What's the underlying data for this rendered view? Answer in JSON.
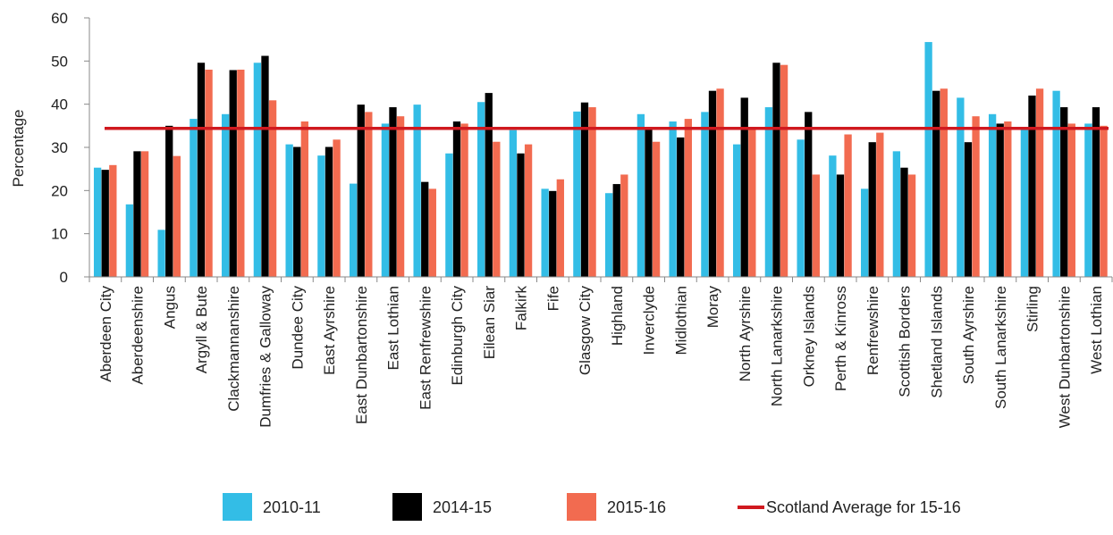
{
  "chart_data": {
    "type": "bar",
    "ylabel": "Percentage",
    "xlabel": "",
    "ylim": [
      0,
      60
    ],
    "yticks": [
      0,
      10,
      20,
      30,
      40,
      50,
      60
    ],
    "grid": false,
    "legend_position": "bottom",
    "categories": [
      "Aberdeen City",
      "Aberdeenshire",
      "Angus",
      "Argyll & Bute",
      "Clackmannanshire",
      "Dumfries & Galloway",
      "Dundee City",
      "East Ayrshire",
      "East Dunbartonshire",
      "East Lothian",
      "East Renfrewshire",
      "Edinburgh City",
      "Eilean Siar",
      "Falkirk",
      "Fife",
      "Glasgow City",
      "Highland",
      "Inverclyde",
      "Midlothian",
      "Moray",
      "North Ayrshire",
      "North Lanarkshire",
      "Orkney Islands",
      "Perth & Kinross",
      "Renfrewshire",
      "Scottish Borders",
      "Shetland Islands",
      "South Ayrshire",
      "South Lanarkshire",
      "Stirling",
      "West Dunbartonshire",
      "West Lothian"
    ],
    "series": [
      {
        "name": "2010-11",
        "color": "#33bde6",
        "values": [
          25.3,
          16.8,
          10.9,
          36.6,
          37.7,
          49.6,
          30.7,
          28.1,
          21.6,
          35.5,
          39.9,
          28.6,
          40.5,
          34.0,
          20.4,
          38.3,
          19.4,
          37.7,
          36.0,
          38.2,
          30.7,
          39.3,
          31.8,
          28.1,
          20.4,
          29.1,
          54.4,
          41.5,
          37.7,
          34.4,
          43.1,
          35.5
        ]
      },
      {
        "name": "2014-15",
        "color": "#000000",
        "values": [
          24.8,
          29.1,
          35.0,
          49.6,
          47.9,
          51.2,
          30.1,
          30.1,
          39.9,
          39.3,
          22.0,
          36.0,
          42.6,
          28.6,
          19.9,
          40.4,
          21.5,
          34.4,
          32.3,
          43.1,
          41.5,
          49.6,
          38.2,
          23.7,
          31.2,
          25.3,
          43.1,
          31.2,
          35.5,
          42.0,
          39.3,
          39.3
        ]
      },
      {
        "name": "2015-16",
        "color": "#f26b50",
        "values": [
          25.9,
          29.1,
          28.0,
          48.0,
          48.0,
          40.9,
          36.0,
          31.8,
          38.2,
          37.2,
          20.4,
          35.5,
          31.3,
          30.7,
          22.6,
          39.3,
          23.7,
          31.3,
          36.6,
          43.6,
          34.4,
          49.1,
          23.7,
          33.0,
          33.4,
          23.7,
          43.6,
          37.2,
          36.0,
          43.6,
          35.5,
          35.0
        ]
      }
    ],
    "reference_line": {
      "name": "Scotland Average for 15-16",
      "value": 34.4,
      "color": "#d0191f"
    }
  }
}
